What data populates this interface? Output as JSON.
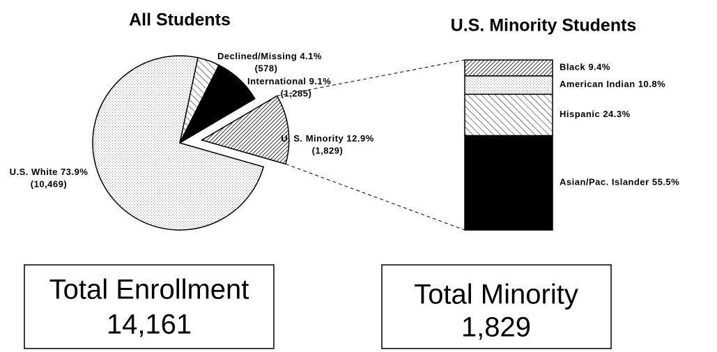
{
  "chart_data": [
    {
      "type": "pie",
      "title": "All Students",
      "categories": [
        "Declined/Missing",
        "International",
        "U. S. Minority",
        "U.S. White"
      ],
      "values": [
        4.1,
        9.1,
        12.9,
        73.9
      ],
      "value_labels": [
        "4.1%",
        "9.1%",
        "12.9%",
        "73.9%"
      ],
      "counts": [
        578,
        1285,
        1829,
        10469
      ],
      "count_labels": [
        "(578)",
        "(1,285)",
        "(1,829)",
        "(10,469)"
      ]
    },
    {
      "type": "stacked-bar",
      "title": "U.S. Minority Students",
      "categories": [
        "Black",
        "American Indian",
        "Hispanic",
        "Asian/Pac. Islander"
      ],
      "values": [
        9.4,
        10.8,
        24.3,
        55.5
      ],
      "value_labels": [
        "9.4%",
        "10.8%",
        "24.3%",
        "55.5%"
      ]
    }
  ],
  "boxes": [
    {
      "title": "Total Enrollment",
      "value": "14,161"
    },
    {
      "title": "Total Minority",
      "value": "1,829"
    }
  ]
}
